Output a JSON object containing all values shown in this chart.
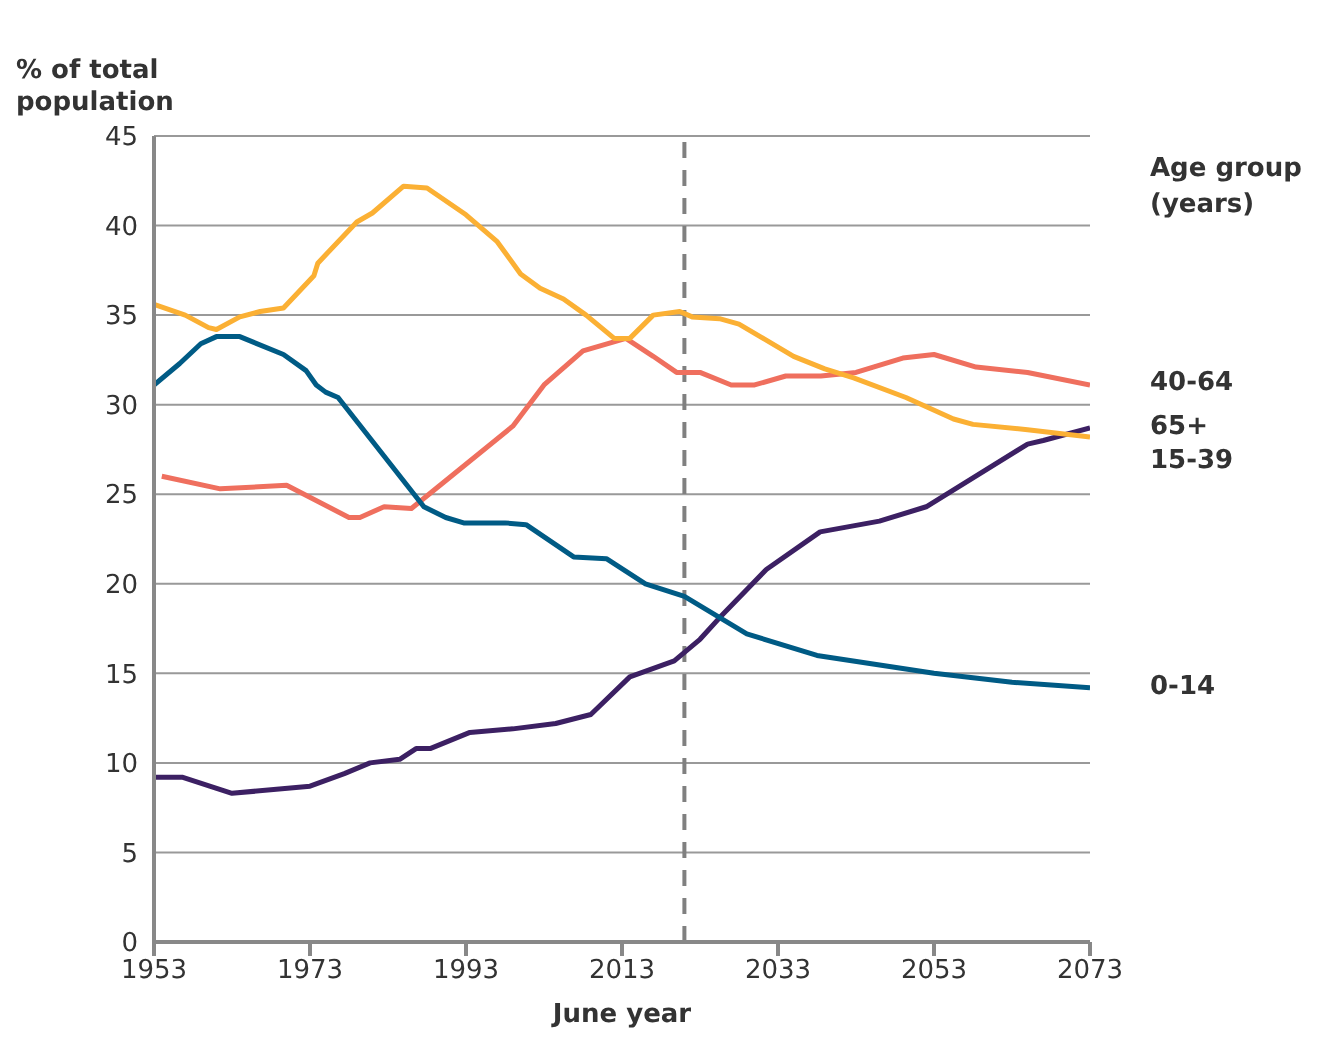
{
  "chart_data": {
    "type": "line",
    "ylabel": "% of total population",
    "xlabel": "June year",
    "legend_title": "Age group (years)",
    "legend": "right",
    "grid": "y",
    "xlim": [
      1953,
      2073
    ],
    "xticks": [
      1953,
      1973,
      1993,
      2013,
      2033,
      2053,
      2073
    ],
    "ylim": [
      0,
      45
    ],
    "yticks": [
      0,
      5,
      10,
      15,
      20,
      25,
      30,
      35,
      40,
      45
    ],
    "ref_lines": [
      {
        "axis": "x",
        "value": 2021,
        "color": "#808080",
        "line_style": "dashed"
      }
    ],
    "series": [
      {
        "name": "40-64",
        "color": "#ef6f5e",
        "x": [
          1954,
          1961.5,
          1970,
          1978,
          1979.4,
          1982.5,
          1986,
          1999,
          2003,
          2008,
          2013.5,
          2017,
          2020,
          2023,
          2027,
          2030,
          2034,
          2038.5,
          2043,
          2049,
          2053,
          2058.4,
          2065,
          2073
        ],
        "values": [
          26.0,
          25.3,
          25.5,
          23.7,
          23.7,
          24.3,
          24.2,
          28.8,
          31.1,
          33.0,
          33.7,
          32.7,
          31.8,
          31.8,
          31.1,
          31.1,
          31.6,
          31.6,
          31.8,
          32.6,
          32.8,
          32.1,
          31.8,
          31.1
        ]
      },
      {
        "name": "65+",
        "color": "#3c2063",
        "x": [
          1953,
          1956.6,
          1963,
          1973,
          1977.4,
          1980.7,
          1984.5,
          1986.6,
          1988.4,
          1993.5,
          1999,
          2004.5,
          2009,
          2014,
          2019.7,
          2023,
          2025.5,
          2031.5,
          2038.4,
          2046,
          2052,
          2065,
          2067,
          2073
        ],
        "values": [
          9.2,
          9.2,
          8.3,
          8.7,
          9.4,
          10.0,
          10.2,
          10.8,
          10.8,
          11.7,
          11.9,
          12.2,
          12.7,
          14.8,
          15.7,
          16.9,
          18.1,
          20.8,
          22.9,
          23.5,
          24.3,
          27.8,
          28.0,
          28.7
        ]
      },
      {
        "name": "15-39",
        "color": "#fbb034",
        "x": [
          1953,
          1957,
          1960,
          1961,
          1964,
          1966.6,
          1969.6,
          1973.5,
          1974,
          1979,
          1981,
          1985,
          1988,
          1993,
          1997,
          2000,
          2002.5,
          2005.5,
          2008.4,
          2012,
          2014,
          2017,
          2020.4,
          2022,
          2025.5,
          2028,
          2035,
          2039,
          2042.7,
          2049.4,
          2055.5,
          2058,
          2065,
          2073
        ],
        "values": [
          35.6,
          35.0,
          34.3,
          34.2,
          34.9,
          35.2,
          35.4,
          37.2,
          37.9,
          40.2,
          40.7,
          42.2,
          42.1,
          40.6,
          39.1,
          37.3,
          36.5,
          35.9,
          35.0,
          33.7,
          33.7,
          35.0,
          35.2,
          34.9,
          34.8,
          34.5,
          32.7,
          32.0,
          31.5,
          30.4,
          29.2,
          28.9,
          28.6,
          28.2
        ]
      },
      {
        "name": "0-14",
        "color": "#005b85",
        "x": [
          1953,
          1956.3,
          1959,
          1961,
          1964,
          1969.6,
          1972.5,
          1973.8,
          1975,
          1976.6,
          1987.6,
          1990.4,
          1992.7,
          1998,
          2000.7,
          2006.8,
          2011,
          2016,
          2021,
          2029,
          2038,
          2053,
          2063,
          2073
        ],
        "values": [
          31.1,
          32.3,
          33.4,
          33.8,
          33.8,
          32.8,
          31.9,
          31.1,
          30.7,
          30.4,
          24.3,
          23.7,
          23.4,
          23.4,
          23.3,
          21.5,
          21.4,
          20.0,
          19.3,
          17.2,
          16.0,
          15.0,
          14.5,
          14.2
        ]
      }
    ]
  }
}
